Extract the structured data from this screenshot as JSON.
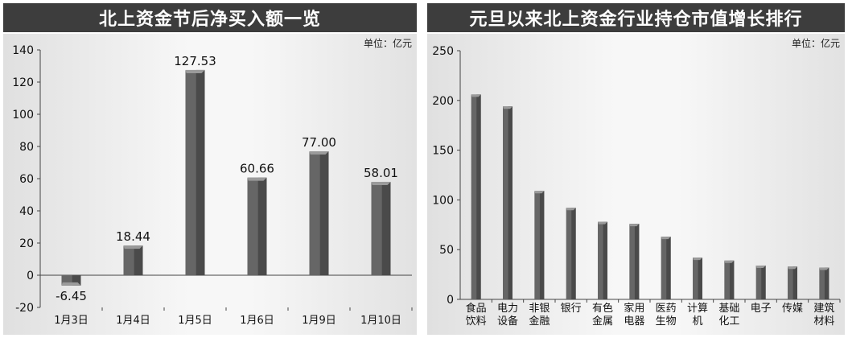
{
  "colors": {
    "title_bg": "#3d3d3d",
    "bar_front": "#666666",
    "bar_side": "#4a4a4a",
    "bar_top": "#9a9a9a",
    "axis": "#444444"
  },
  "chart_data": [
    {
      "type": "bar",
      "title": "北上资金节后净买入额一览",
      "unit_label": "单位：亿元",
      "categories": [
        "1月3日",
        "1月4日",
        "1月5日",
        "1月6日",
        "1月9日",
        "1月10日"
      ],
      "values": [
        -6.45,
        18.44,
        127.53,
        60.66,
        77.0,
        58.01
      ],
      "data_labels": [
        "-6.45",
        "18.44",
        "127.53",
        "60.66",
        "77.00",
        "58.01"
      ],
      "ylim": [
        -20,
        140
      ],
      "yticks": [
        -20,
        0,
        20,
        40,
        60,
        80,
        100,
        120,
        140
      ],
      "grid": false
    },
    {
      "type": "bar",
      "title": "元旦以来北上资金行业持仓市值增长排行",
      "unit_label": "单位：亿元",
      "categories": [
        [
          "食品",
          "饮料"
        ],
        [
          "电力",
          "设备"
        ],
        [
          "非银",
          "金融"
        ],
        [
          "银行"
        ],
        [
          "有色",
          "金属"
        ],
        [
          "家用",
          "电器"
        ],
        [
          "医药",
          "生物"
        ],
        [
          "计算",
          "机"
        ],
        [
          "基础",
          "化工"
        ],
        [
          "电子"
        ],
        [
          "传媒"
        ],
        [
          "建筑",
          "材料"
        ]
      ],
      "values": [
        206,
        194,
        109,
        92,
        78,
        76,
        63,
        42,
        39,
        34,
        33,
        32
      ],
      "ylim": [
        0,
        250
      ],
      "yticks": [
        0,
        50,
        100,
        150,
        200,
        250
      ],
      "grid": false
    }
  ]
}
